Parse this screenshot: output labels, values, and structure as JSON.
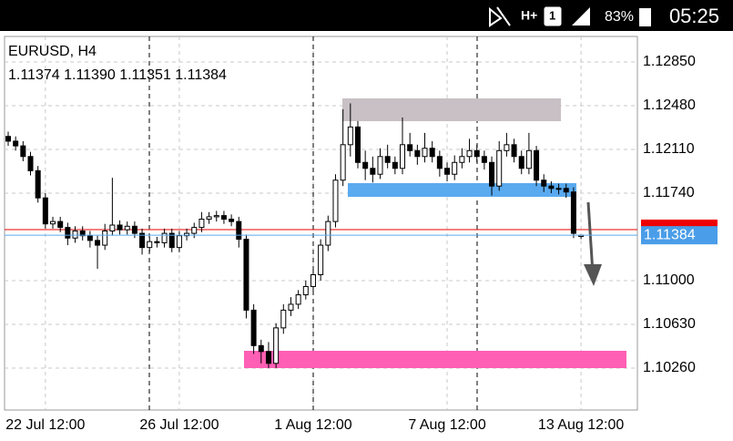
{
  "status_bar": {
    "battery": "83%",
    "time": "05:25"
  },
  "chart_data": {
    "type": "candlestick",
    "title": "EURUSD, H4",
    "subtitle": "1.11374 1.11390 1.11351 1.11384",
    "categories": [
      null,
      null,
      null,
      null,
      null,
      "22 Jul 12:00",
      null,
      null,
      null,
      null,
      null,
      null,
      null,
      null,
      null,
      null,
      null,
      null,
      null,
      null,
      null,
      null,
      null,
      "26 Jul 12:00",
      null,
      null,
      null,
      null,
      null,
      null,
      null,
      null,
      null,
      null,
      null,
      null,
      null,
      null,
      null,
      null,
      null,
      "1 Aug 12:00",
      null,
      null,
      null,
      null,
      null,
      null,
      null,
      null,
      null,
      null,
      null,
      null,
      null,
      null,
      null,
      null,
      null,
      "7 Aug 12:00",
      null,
      null,
      null,
      null,
      null,
      null,
      null,
      null,
      null,
      null,
      null,
      null,
      null,
      null,
      null,
      null,
      null,
      "13 Aug 12:00"
    ],
    "open": [
      1.1222,
      1.1218,
      1.1214,
      1.1205,
      1.1193,
      1.117,
      1.1148,
      1.115,
      1.1145,
      1.1136,
      1.1142,
      1.1138,
      1.1134,
      1.113,
      1.1142,
      1.1147,
      1.1143,
      1.1146,
      1.114,
      1.1128,
      1.1133,
      1.1132,
      1.114,
      1.1128,
      1.1138,
      1.114,
      1.1145,
      1.1152,
      1.1154,
      1.1155,
      1.1152,
      1.115,
      1.1135,
      1.1075,
      1.1045,
      1.104,
      1.103,
      1.106,
      1.1075,
      1.108,
      1.1088,
      1.1095,
      1.1105,
      1.113,
      1.115,
      1.1185,
      1.1215,
      1.123,
      1.12,
      1.1195,
      1.119,
      1.1205,
      1.12,
      1.1195,
      1.1215,
      1.121,
      1.1205,
      1.1212,
      1.1205,
      1.1195,
      1.119,
      1.12,
      1.1205,
      1.121,
      1.1205,
      1.12,
      1.118,
      1.121,
      1.1215,
      1.1205,
      1.1195,
      1.121,
      1.1185,
      1.118,
      1.1178,
      1.1178,
      1.1175,
      1.11374
    ],
    "high": [
      1.1226,
      1.1222,
      1.1218,
      1.1209,
      1.1197,
      1.1174,
      1.1154,
      1.1154,
      1.1149,
      1.1146,
      1.1146,
      1.1142,
      1.1138,
      1.1148,
      1.1187,
      1.1151,
      1.115,
      1.115,
      1.1144,
      1.1137,
      1.1137,
      1.1144,
      1.1144,
      1.1142,
      1.1144,
      1.1149,
      1.1158,
      1.1158,
      1.1159,
      1.1159,
      1.1156,
      1.1154,
      1.1139,
      1.108,
      1.105,
      1.1048,
      1.1064,
      1.108,
      1.1086,
      1.1092,
      1.11,
      1.111,
      1.1135,
      1.1155,
      1.119,
      1.1245,
      1.125,
      1.1235,
      1.121,
      1.1205,
      1.1212,
      1.1215,
      1.1205,
      1.1238,
      1.1225,
      1.1215,
      1.1225,
      1.1218,
      1.121,
      1.12,
      1.1206,
      1.1212,
      1.122,
      1.1215,
      1.121,
      1.1205,
      1.1218,
      1.1225,
      1.122,
      1.121,
      1.1225,
      1.1214,
      1.119,
      1.1184,
      1.1182,
      1.1182,
      1.1179,
      1.1139
    ],
    "low": [
      1.1214,
      1.121,
      1.1201,
      1.1189,
      1.1166,
      1.1144,
      1.1144,
      1.1141,
      1.113,
      1.1132,
      1.1134,
      1.1128,
      1.111,
      1.1126,
      1.1138,
      1.1139,
      1.1139,
      1.1136,
      1.1122,
      1.1124,
      1.1128,
      1.1128,
      1.1124,
      1.1124,
      1.1134,
      1.1136,
      1.1141,
      1.1148,
      1.115,
      1.1148,
      1.1146,
      1.1128,
      1.1068,
      1.1038,
      1.103,
      1.1026,
      1.1026,
      1.1055,
      1.107,
      1.1076,
      1.1084,
      1.109,
      1.11,
      1.1125,
      1.1145,
      1.118,
      1.1205,
      1.1195,
      1.1185,
      1.1183,
      1.1186,
      1.1195,
      1.119,
      1.119,
      1.1205,
      1.1198,
      1.12,
      1.12,
      1.1188,
      1.1184,
      1.1185,
      1.1195,
      1.12,
      1.12,
      1.1194,
      1.1172,
      1.1176,
      1.1205,
      1.12,
      1.119,
      1.119,
      1.118,
      1.1175,
      1.1174,
      1.1173,
      1.117,
      1.1136,
      1.11351
    ],
    "close": [
      1.1218,
      1.1214,
      1.1205,
      1.1193,
      1.117,
      1.1148,
      1.115,
      1.1145,
      1.1136,
      1.1142,
      1.1138,
      1.1134,
      1.113,
      1.1142,
      1.1147,
      1.1143,
      1.1146,
      1.114,
      1.1128,
      1.1133,
      1.1132,
      1.114,
      1.1128,
      1.1138,
      1.114,
      1.1145,
      1.1152,
      1.1154,
      1.1155,
      1.1152,
      1.115,
      1.1135,
      1.1075,
      1.1045,
      1.104,
      1.103,
      1.106,
      1.1075,
      1.108,
      1.1088,
      1.1095,
      1.1105,
      1.113,
      1.115,
      1.1185,
      1.1215,
      1.123,
      1.12,
      1.1195,
      1.119,
      1.1205,
      1.12,
      1.1195,
      1.1215,
      1.121,
      1.1205,
      1.1212,
      1.1205,
      1.1195,
      1.119,
      1.12,
      1.1205,
      1.121,
      1.1205,
      1.12,
      1.118,
      1.121,
      1.1215,
      1.1205,
      1.1195,
      1.121,
      1.1185,
      1.118,
      1.1178,
      1.1178,
      1.1175,
      1.114,
      1.11384
    ],
    "up_color": "#ffffff",
    "down_color": "#000000",
    "ylim": [
      1.09905,
      1.13066
    ],
    "yticks": [
      {
        "value": 1.1026,
        "label": "1.10260"
      },
      {
        "value": 1.1063,
        "label": "1.10630"
      },
      {
        "value": 1.11,
        "label": "1.11000"
      },
      {
        "value": 1.1174,
        "label": "1.11740"
      },
      {
        "value": 1.1211,
        "label": "1.12110"
      },
      {
        "value": 1.1248,
        "label": "1.12480"
      },
      {
        "value": 1.1285,
        "label": "1.12850"
      }
    ],
    "bid": 1.11384,
    "grid": true
  }
}
